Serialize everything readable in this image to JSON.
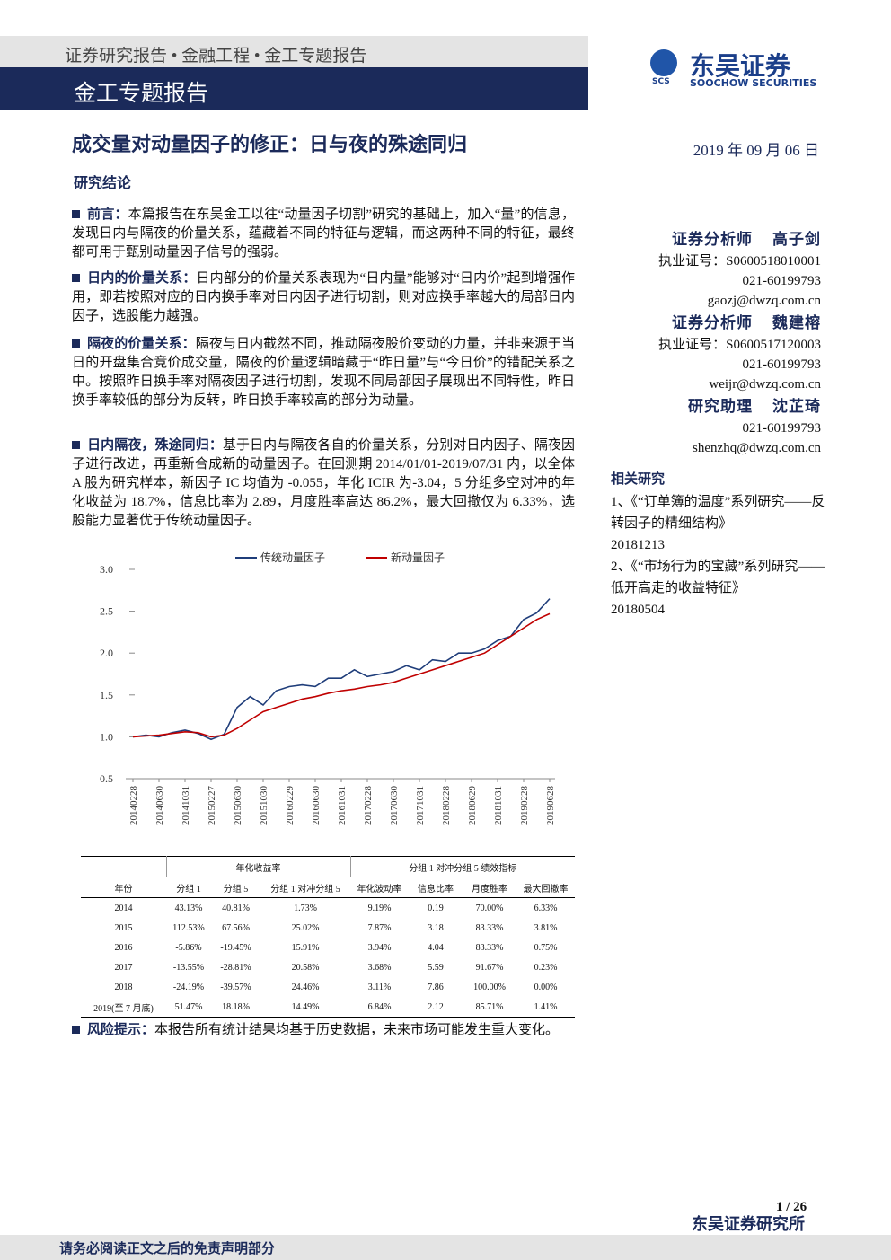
{
  "header": {
    "breadcrumb": "证券研究报告 • 金融工程 • 金工专题报告",
    "band": "金工专题报告",
    "logo_cn": "东吴证券",
    "logo_abbr": "SCS",
    "logo_en": "SOOCHOW SECURITIES"
  },
  "title": "成交量对动量因子的修正：日与夜的殊途同归",
  "date": "2019 年 09 月 06 日",
  "section": "研究结论",
  "bullets": [
    {
      "lead": "前言：",
      "text": "本篇报告在东吴金工以往“动量因子切割”研究的基础上，加入“量”的信息，发现日内与隔夜的价量关系，蕴藏着不同的特征与逻辑，而这两种不同的特征，最终都可用于甄别动量因子信号的强弱。"
    },
    {
      "lead": "日内的价量关系：",
      "text": "日内部分的价量关系表现为“日内量”能够对“日内价”起到增强作用，即若按照对应的日内换手率对日内因子进行切割，则对应换手率越大的局部日内因子，选股能力越强。"
    },
    {
      "lead": "隔夜的价量关系：",
      "text": "隔夜与日内截然不同，推动隔夜股价变动的力量，并非来源于当日的开盘集合竞价成交量，隔夜的价量逻辑暗藏于“昨日量”与“今日价”的错配关系之中。按照昨日换手率对隔夜因子进行切割，发现不同局部因子展现出不同特性，昨日换手率较低的部分为反转，昨日换手率较高的部分为动量。"
    },
    {
      "lead": "日内隔夜，殊途同归：",
      "text": "基于日内与隔夜各自的价量关系，分别对日内因子、隔夜因子进行改进，再重新合成新的动量因子。在回测期 2014/01/01-2019/07/31 内，以全体 A 股为研究样本，新因子 IC 均值为 -0.055，年化 ICIR 为-3.04，5 分组多空对冲的年化收益为 18.7%，信息比率为 2.89，月度胜率高达 86.2%，最大回撤仅为 6.33%，选股能力显著优于传统动量因子。"
    }
  ],
  "chart_data": {
    "type": "line",
    "categories": [
      "20140228",
      null,
      "20140630",
      null,
      "20141031",
      null,
      "20150227",
      null,
      "20150630",
      null,
      "20151030",
      null,
      "20160229",
      null,
      "20160630",
      null,
      "20161031",
      null,
      "20170228",
      null,
      "20170630",
      null,
      "20171031",
      null,
      "20180228",
      null,
      "20180629",
      null,
      "20181031",
      null,
      "20190228",
      null,
      "20190628"
    ],
    "series": [
      {
        "name": "传统动量因子",
        "color": "#1f3d7a",
        "values": [
          1.0,
          1.02,
          1.0,
          1.05,
          1.08,
          1.04,
          0.97,
          1.03,
          1.35,
          1.48,
          1.38,
          1.55,
          1.6,
          1.62,
          1.6,
          1.7,
          1.7,
          1.8,
          1.72,
          1.75,
          1.78,
          1.85,
          1.8,
          1.92,
          1.9,
          2.0,
          2.0,
          2.05,
          2.15,
          2.2,
          2.4,
          2.48,
          2.65
        ]
      },
      {
        "name": "新动量因子",
        "color": "#c00000",
        "values": [
          1.0,
          1.01,
          1.02,
          1.04,
          1.06,
          1.05,
          1.0,
          1.02,
          1.1,
          1.2,
          1.3,
          1.35,
          1.4,
          1.45,
          1.48,
          1.52,
          1.55,
          1.57,
          1.6,
          1.62,
          1.65,
          1.7,
          1.75,
          1.8,
          1.85,
          1.9,
          1.95,
          2.0,
          2.1,
          2.2,
          2.3,
          2.4,
          2.47
        ]
      }
    ],
    "ylim": [
      0.5,
      3.0
    ],
    "yticks": [
      {
        "value": 0.5,
        "label": "0.5"
      },
      {
        "value": 1,
        "label": "1.0"
      },
      {
        "value": 1.5,
        "label": "1.5"
      },
      {
        "value": 2,
        "label": "2.0"
      },
      {
        "value": 2.5,
        "label": "2.5"
      },
      {
        "value": 3,
        "label": "3.0"
      }
    ]
  },
  "table": {
    "group_headers": [
      "年化收益率",
      "分组 1 对冲分组 5 绩效指标"
    ],
    "columns": [
      "年份",
      "分组 1",
      "分组 5",
      "分组 1 对冲分组 5",
      "年化波动率",
      "信息比率",
      "月度胜率",
      "最大回撤率"
    ],
    "rows": [
      [
        "2014",
        "43.13%",
        "40.81%",
        "1.73%",
        "9.19%",
        "0.19",
        "70.00%",
        "6.33%"
      ],
      [
        "2015",
        "112.53%",
        "67.56%",
        "25.02%",
        "7.87%",
        "3.18",
        "83.33%",
        "3.81%"
      ],
      [
        "2016",
        "-5.86%",
        "-19.45%",
        "15.91%",
        "3.94%",
        "4.04",
        "83.33%",
        "0.75%"
      ],
      [
        "2017",
        "-13.55%",
        "-28.81%",
        "20.58%",
        "3.68%",
        "5.59",
        "91.67%",
        "0.23%"
      ],
      [
        "2018",
        "-24.19%",
        "-39.57%",
        "24.46%",
        "3.11%",
        "7.86",
        "100.00%",
        "0.00%"
      ],
      [
        "2019(至 7 月底)",
        "51.47%",
        "18.18%",
        "14.49%",
        "6.84%",
        "2.12",
        "85.71%",
        "1.41%"
      ]
    ]
  },
  "risk": {
    "lead": "风险提示：",
    "text": "本报告所有统计结果均基于历史数据，未来市场可能发生重大变化。"
  },
  "analysts": [
    {
      "role": "证券分析师",
      "name": "高子剑",
      "cert": "执业证号：S0600518010001",
      "phone": "021-60199793",
      "email": "gaozj@dwzq.com.cn"
    },
    {
      "role": "证券分析师",
      "name": "魏建榕",
      "cert": "执业证号：S0600517120003",
      "phone": "021-60199793",
      "email": "weijr@dwzq.com.cn"
    },
    {
      "role": "研究助理",
      "name": "沈芷琦",
      "phone": "021-60199793",
      "email": "shenzhq@dwzq.com.cn"
    }
  ],
  "related": {
    "title": "相关研究",
    "items": [
      {
        "title": "1、《“订单簿的温度”系列研究——反转因子的精细结构》",
        "date": "20181213"
      },
      {
        "title": "2、《“市场行为的宝藏”系列研究——低开高走的收益特征》",
        "date": "20180504"
      }
    ]
  },
  "footer": {
    "page": "1 / 26",
    "institute": "东吴证券研究所",
    "disclaimer": "请务必阅读正文之后的免责声明部分"
  }
}
